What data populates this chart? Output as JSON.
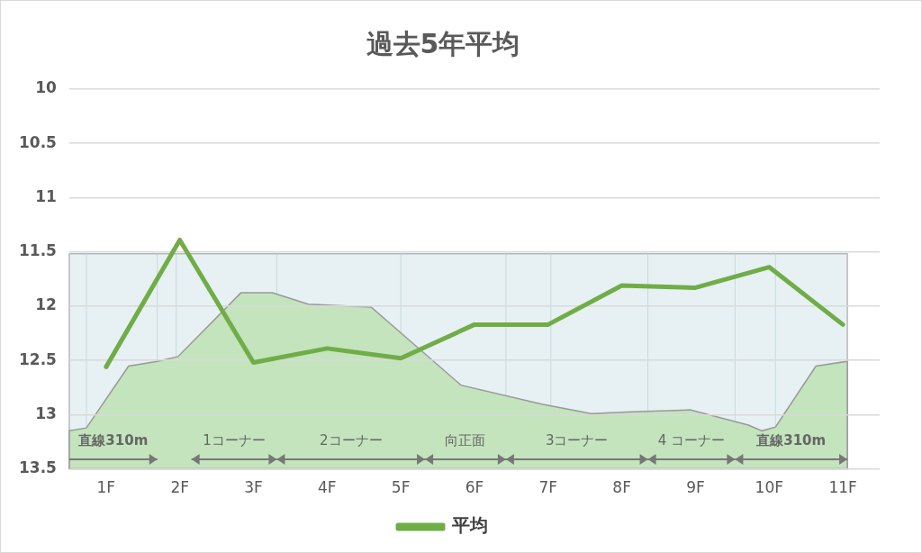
{
  "chart_data": {
    "type": "line",
    "title": "過去5年平均",
    "categories": [
      "1F",
      "2F",
      "3F",
      "4F",
      "5F",
      "6F",
      "7F",
      "8F",
      "9F",
      "10F",
      "11F"
    ],
    "series": [
      {
        "name": "平均",
        "color": "#70ad47",
        "values": [
          12.56,
          11.39,
          12.52,
          12.39,
          12.48,
          12.17,
          12.17,
          11.81,
          11.83,
          11.64,
          12.17
        ]
      }
    ],
    "ylim": [
      13.5,
      10
    ],
    "yticks": [
      10,
      10.5,
      11,
      11.5,
      12,
      12.5,
      13,
      13.5
    ],
    "grid": "y",
    "legend": "bottom",
    "marker": "none",
    "line_style": "solid",
    "annotations": [
      "直線310m",
      "1コーナー",
      "2コーナー",
      "向正面",
      "3コーナー",
      "4 コーナー",
      "直線310m"
    ]
  }
}
